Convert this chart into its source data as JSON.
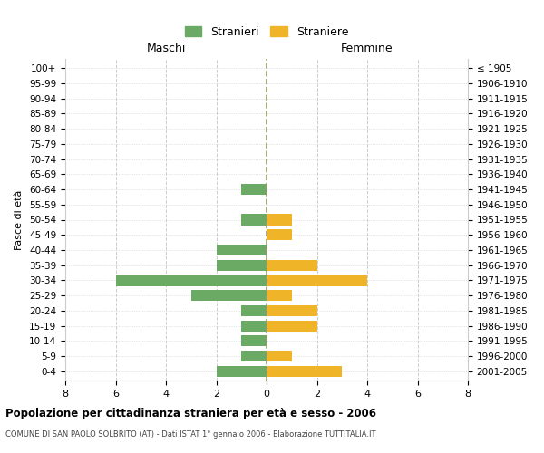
{
  "age_groups_bottom_to_top": [
    "0-4",
    "5-9",
    "10-14",
    "15-19",
    "20-24",
    "25-29",
    "30-34",
    "35-39",
    "40-44",
    "45-49",
    "50-54",
    "55-59",
    "60-64",
    "65-69",
    "70-74",
    "75-79",
    "80-84",
    "85-89",
    "90-94",
    "95-99",
    "100+"
  ],
  "birth_years_bottom_to_top": [
    "2001-2005",
    "1996-2000",
    "1991-1995",
    "1986-1990",
    "1981-1985",
    "1976-1980",
    "1971-1975",
    "1966-1970",
    "1961-1965",
    "1956-1960",
    "1951-1955",
    "1946-1950",
    "1941-1945",
    "1936-1940",
    "1931-1935",
    "1926-1930",
    "1921-1925",
    "1916-1920",
    "1911-1915",
    "1906-1910",
    "≤ 1905"
  ],
  "maschi_bottom_to_top": [
    2,
    1,
    1,
    1,
    1,
    3,
    6,
    2,
    2,
    0,
    1,
    0,
    1,
    0,
    0,
    0,
    0,
    0,
    0,
    0,
    0
  ],
  "femmine_bottom_to_top": [
    3,
    1,
    0,
    2,
    2,
    1,
    4,
    2,
    0,
    1,
    1,
    0,
    0,
    0,
    0,
    0,
    0,
    0,
    0,
    0,
    0
  ],
  "color_maschi": "#6aaa64",
  "color_femmine": "#f0b429",
  "xlim": 8,
  "title": "Popolazione per cittadinanza straniera per età e sesso - 2006",
  "subtitle": "COMUNE DI SAN PAOLO SOLBRITO (AT) - Dati ISTAT 1° gennaio 2006 - Elaborazione TUTTITALIA.IT",
  "ylabel_left": "Fasce di età",
  "header_maschi": "Maschi",
  "header_femmine": "Femmine",
  "legend_maschi": "Stranieri",
  "legend_femmine": "Straniere",
  "bg_color": "#ffffff",
  "grid_color": "#cccccc",
  "center_line_color": "#999966"
}
